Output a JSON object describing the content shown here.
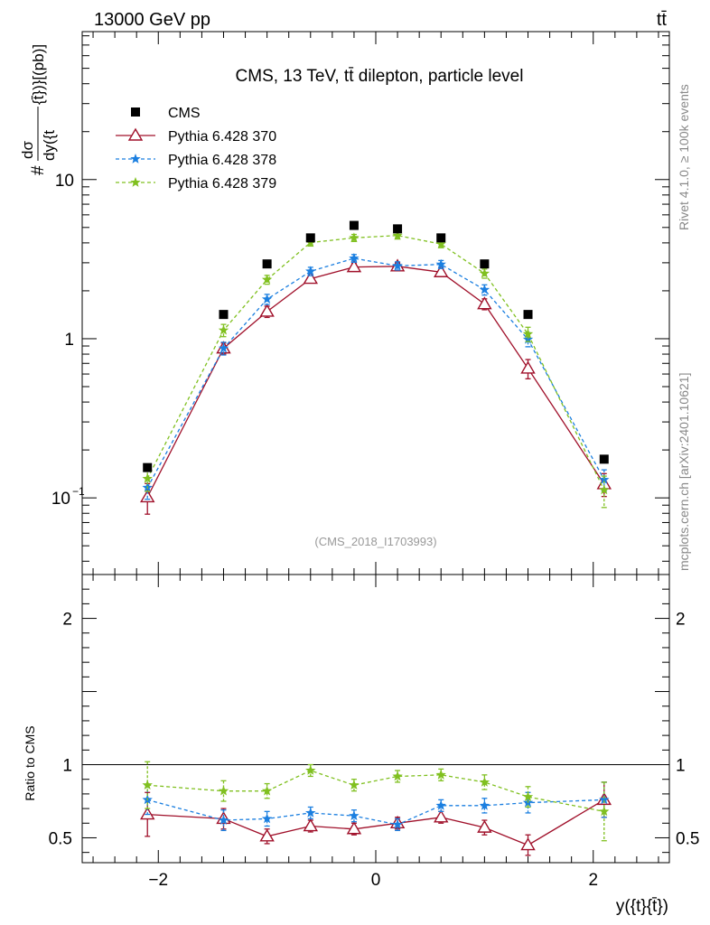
{
  "header": {
    "left_label": "13000 GeV pp",
    "right_label": "tt̄"
  },
  "side_labels": {
    "rivet": "Rivet 4.1.0, ≥ 100k events",
    "source": "mcplots.cern.ch [arXiv:2401.10621]"
  },
  "chart_data": [
    {
      "type": "scatter",
      "panel": "main",
      "title": "CMS, 13 TeV, tt̄ dilepton, particle level",
      "analysis_id": "(CMS_2018_I1703993)",
      "xlabel": "y({t}{t̄})",
      "ylabel": "# dσ / dy({t} [{t̄}]) [(pb)]",
      "ylabel_parts": [
        "#",
        "dσ",
        "dy({t",
        "{t̄})}[(pb)]"
      ],
      "yscale": "log",
      "xlim": [
        -2.7,
        2.7
      ],
      "ylim": [
        0.033,
        85
      ],
      "x_ticks": [
        -2,
        0,
        2
      ],
      "y_ticks": [
        {
          "value": 0.1,
          "base": "10",
          "exp": "−1"
        },
        {
          "value": 1,
          "base": "1",
          "exp": ""
        },
        {
          "value": 10,
          "base": "10",
          "exp": ""
        }
      ],
      "legend_position": "top-left",
      "x": [
        -2.1,
        -1.4,
        -1.0,
        -0.6,
        -0.2,
        0.2,
        0.6,
        1.0,
        1.4,
        2.1
      ],
      "series": [
        {
          "name": "CMS",
          "color": "#000000",
          "marker": "square",
          "line": "none",
          "values": [
            0.155,
            1.42,
            2.95,
            4.3,
            5.15,
            4.9,
            4.3,
            2.95,
            1.42,
            0.175
          ]
        },
        {
          "name": "Pythia 6.428 370",
          "color": "#a0102a",
          "marker": "open-triangle",
          "line": "solid",
          "values": [
            0.101,
            0.87,
            1.48,
            2.38,
            2.82,
            2.85,
            2.62,
            1.65,
            0.65,
            0.122
          ],
          "errors": [
            0.022,
            0.07,
            0.12,
            0.14,
            0.17,
            0.17,
            0.16,
            0.13,
            0.09,
            0.02
          ]
        },
        {
          "name": "Pythia 6.428 378",
          "color": "#1b7fe0",
          "marker": "star",
          "line": "dashed",
          "values": [
            0.116,
            0.87,
            1.77,
            2.65,
            3.2,
            2.87,
            2.93,
            2.03,
            0.99,
            0.13
          ],
          "errors": [
            0.018,
            0.08,
            0.13,
            0.16,
            0.18,
            0.17,
            0.17,
            0.15,
            0.1,
            0.02
          ]
        },
        {
          "name": "Pythia 6.428 379",
          "color": "#80c020",
          "marker": "star",
          "line": "dashed",
          "values": [
            0.132,
            1.13,
            2.35,
            4.02,
            4.3,
            4.45,
            3.93,
            2.57,
            1.07,
            0.112
          ],
          "errors": [
            0.022,
            0.1,
            0.15,
            0.2,
            0.22,
            0.22,
            0.2,
            0.17,
            0.11,
            0.025
          ]
        }
      ]
    },
    {
      "type": "scatter",
      "panel": "ratio",
      "ylabel": "Ratio to CMS",
      "xlabel": "y({t}{t̄})",
      "xlim": [
        -2.7,
        2.7
      ],
      "ylim": [
        0.33,
        2.3
      ],
      "x_ticks": [
        -2,
        0,
        2
      ],
      "y_ticks": [
        0.5,
        1,
        2
      ],
      "reference_line": 1,
      "x": [
        -2.1,
        -1.4,
        -1.0,
        -0.6,
        -0.2,
        0.2,
        0.6,
        1.0,
        1.4,
        2.1
      ],
      "series": [
        {
          "name": "Pythia 6.428 370",
          "color": "#a0102a",
          "marker": "open-triangle",
          "line": "solid",
          "values": [
            0.66,
            0.63,
            0.51,
            0.58,
            0.56,
            0.6,
            0.64,
            0.57,
            0.45,
            0.76
          ],
          "errors": [
            0.15,
            0.07,
            0.05,
            0.04,
            0.04,
            0.04,
            0.04,
            0.05,
            0.07,
            0.12
          ]
        },
        {
          "name": "Pythia 6.428 378",
          "color": "#1b7fe0",
          "marker": "star",
          "line": "dashed",
          "values": [
            0.76,
            0.62,
            0.63,
            0.67,
            0.65,
            0.59,
            0.72,
            0.72,
            0.74,
            0.76
          ],
          "errors": [
            0.1,
            0.07,
            0.05,
            0.04,
            0.04,
            0.04,
            0.04,
            0.05,
            0.07,
            0.12
          ]
        },
        {
          "name": "Pythia 6.428 379",
          "color": "#80c020",
          "marker": "star",
          "line": "dashed",
          "values": [
            0.86,
            0.82,
            0.82,
            0.96,
            0.86,
            0.92,
            0.93,
            0.88,
            0.78,
            0.68
          ],
          "errors": [
            0.16,
            0.07,
            0.05,
            0.04,
            0.04,
            0.04,
            0.04,
            0.05,
            0.07,
            0.2
          ]
        }
      ]
    }
  ]
}
